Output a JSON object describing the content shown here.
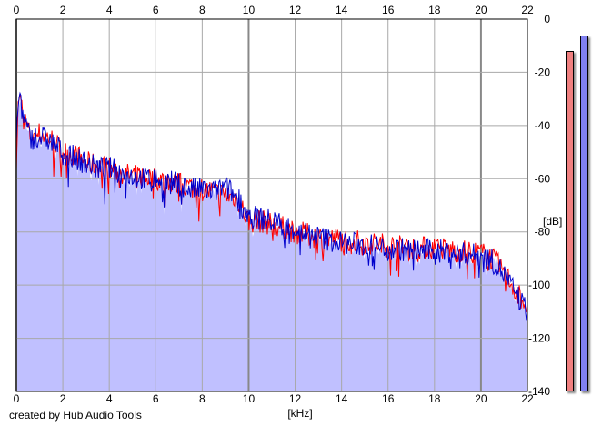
{
  "credit": "created by Hub Audio Tools",
  "colors": {
    "fill": "#c0c0ff",
    "ch_left": "#ff0000",
    "ch_right": "#0000cc",
    "grid": "#a8a8a8",
    "meter_left": "#f08080",
    "meter_right": "#8080f0"
  },
  "chart_data": {
    "type": "line",
    "xlabel": "[kHz]",
    "ylabel": "[dB]",
    "xlim": [
      0,
      22
    ],
    "ylim": [
      -140,
      0
    ],
    "x_ticks": [
      "0",
      "2",
      "4",
      "6",
      "8",
      "10",
      "12",
      "14",
      "16",
      "18",
      "20",
      "22"
    ],
    "y_ticks": [
      "0",
      "-20",
      "-40",
      "-60",
      "-80",
      "-100",
      "-120",
      "-140"
    ],
    "grid": true,
    "series": [
      {
        "color": "#ff0000",
        "x": [
          0,
          0.1,
          0.3,
          0.6,
          1,
          1.5,
          2,
          2.5,
          3,
          3.5,
          4,
          4.5,
          5,
          5.5,
          6,
          6.5,
          7,
          7.5,
          8,
          8.5,
          9,
          9.5,
          10,
          10.5,
          11,
          12,
          13,
          14,
          15,
          16,
          17,
          18,
          19,
          20,
          20.5,
          21,
          21.5,
          22
        ],
        "y": [
          -52,
          -28,
          -36,
          -44,
          -43,
          -45,
          -50,
          -51,
          -54,
          -55,
          -56,
          -58,
          -59,
          -59,
          -60,
          -61,
          -62,
          -63,
          -64,
          -65,
          -66,
          -67,
          -76,
          -76,
          -77,
          -80,
          -82,
          -83,
          -84,
          -85,
          -86,
          -86,
          -87,
          -88,
          -90,
          -95,
          -102,
          -108
        ]
      },
      {
        "color": "#0000cc",
        "x": [
          0,
          0.1,
          0.3,
          0.6,
          1,
          1.5,
          2,
          2.5,
          3,
          3.5,
          4,
          4.5,
          5,
          5.5,
          6,
          6.5,
          7,
          7.5,
          8,
          8.5,
          9,
          9.5,
          10,
          10.5,
          11,
          12,
          13,
          14,
          15,
          16,
          17,
          18,
          19,
          20,
          20.5,
          21,
          21.5,
          22
        ],
        "y": [
          -50,
          -26,
          -37,
          -45,
          -44,
          -46,
          -50,
          -52,
          -54,
          -56,
          -56,
          -58,
          -59,
          -60,
          -60,
          -61,
          -62,
          -64,
          -64,
          -65,
          -63,
          -67,
          -74,
          -75,
          -76,
          -79,
          -82,
          -84,
          -85,
          -86,
          -87,
          -87,
          -88,
          -89,
          -91,
          -96,
          -103,
          -110
        ]
      }
    ],
    "meters": {
      "ylim": [
        -140,
        0
      ],
      "left_peak_db": -12,
      "right_peak_db": -6
    }
  }
}
